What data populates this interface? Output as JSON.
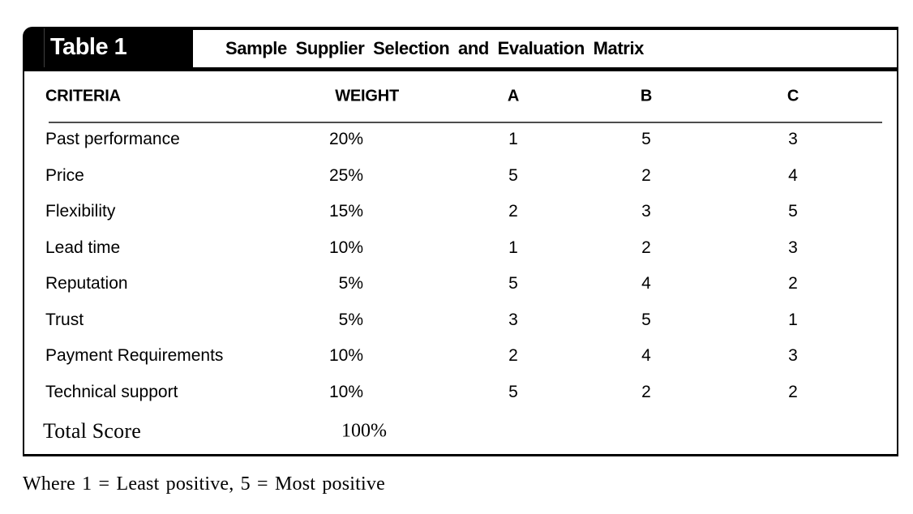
{
  "table": {
    "tag": "Table 1",
    "title": "Sample Supplier Selection and Evaluation Matrix",
    "columns": [
      "CRITERIA",
      "WEIGHT",
      "A",
      "B",
      "C"
    ],
    "rows": [
      {
        "criteria": "Past performance",
        "weight": "20%",
        "a": "1",
        "b": "5",
        "c": "3"
      },
      {
        "criteria": "Price",
        "weight": "25%",
        "a": "5",
        "b": "2",
        "c": "4"
      },
      {
        "criteria": "Flexibility",
        "weight": "15%",
        "a": "2",
        "b": "3",
        "c": "5"
      },
      {
        "criteria": "Lead time",
        "weight": "10%",
        "a": "1",
        "b": "2",
        "c": "3"
      },
      {
        "criteria": "Reputation",
        "weight": "5%",
        "a": "5",
        "b": "4",
        "c": "2"
      },
      {
        "criteria": "Trust",
        "weight": "5%",
        "a": "3",
        "b": "5",
        "c": "1"
      },
      {
        "criteria": "Payment Requirements",
        "weight": "10%",
        "a": "2",
        "b": "4",
        "c": "3"
      },
      {
        "criteria": "Technical support",
        "weight": "10%",
        "a": "5",
        "b": "2",
        "c": "2"
      }
    ],
    "total": {
      "label": "Total Score",
      "weight": "100%"
    }
  },
  "footnote": "Where 1 = Least positive, 5 = Most positive",
  "colors": {
    "band": "#000000",
    "text": "#000000",
    "rule": "#4d4d4d"
  }
}
